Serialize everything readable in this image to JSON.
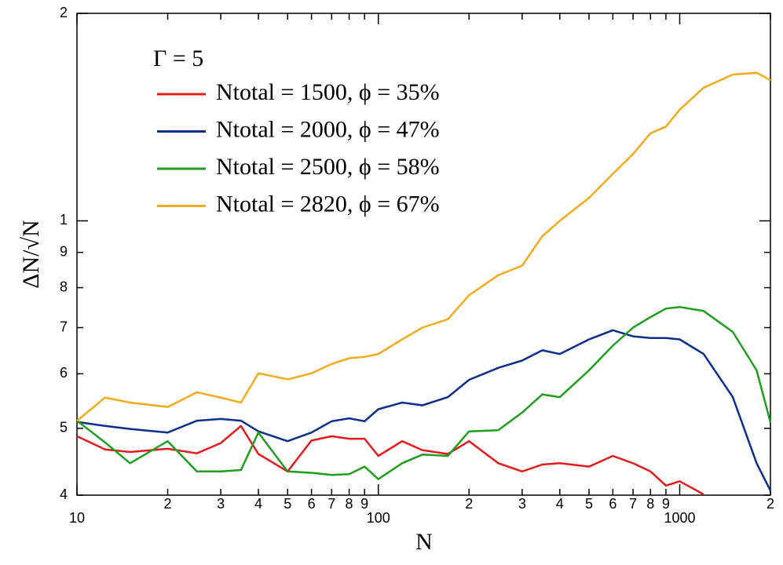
{
  "chart_data": {
    "type": "line",
    "xlabel": "N",
    "ylabel": "ΔN/√N",
    "legend_title": "Γ = 5",
    "xscale": "log",
    "yscale": "log",
    "xlim": [
      10,
      2000
    ],
    "ylim": [
      0.4,
      2
    ],
    "xticks": [
      10,
      {
        "value": 20,
        "label": "2"
      },
      {
        "value": 30,
        "label": "3"
      },
      {
        "value": 40,
        "label": "4"
      },
      {
        "value": 50,
        "label": "5"
      },
      {
        "value": 60,
        "label": "6"
      },
      {
        "value": 70,
        "label": "7"
      },
      {
        "value": 80,
        "label": "8"
      },
      {
        "value": 90,
        "label": "9"
      },
      100,
      {
        "value": 200,
        "label": "2"
      },
      {
        "value": 300,
        "label": "3"
      },
      {
        "value": 400,
        "label": "4"
      },
      {
        "value": 500,
        "label": "5"
      },
      {
        "value": 600,
        "label": "6"
      },
      {
        "value": 700,
        "label": "7"
      },
      {
        "value": 800,
        "label": "8"
      },
      {
        "value": 900,
        "label": "9"
      },
      1000,
      {
        "value": 2000,
        "label": "2"
      }
    ],
    "yticks": [
      {
        "value": 0.4,
        "label": "4"
      },
      {
        "value": 0.5,
        "label": "5"
      },
      {
        "value": 0.6,
        "label": "6"
      },
      {
        "value": 0.7,
        "label": "7"
      },
      {
        "value": 0.8,
        "label": "8"
      },
      {
        "value": 0.9,
        "label": "9"
      },
      1,
      2
    ],
    "x": [
      10,
      12.4,
      15,
      20,
      25,
      30,
      35,
      40,
      50,
      60,
      70,
      80,
      90,
      100,
      120,
      140,
      170,
      200,
      250,
      300,
      350,
      400,
      500,
      600,
      700,
      800,
      900,
      1000,
      1200,
      1500,
      1800,
      2000
    ],
    "series": [
      {
        "name": "Ntotal = 1500, ϕ = 35%",
        "color": "#e41a1c",
        "values": [
          0.487,
          0.466,
          0.462,
          0.467,
          0.46,
          0.476,
          0.504,
          0.459,
          0.433,
          0.48,
          0.487,
          0.483,
          0.483,
          0.456,
          0.479,
          0.465,
          0.459,
          0.479,
          0.445,
          0.433,
          0.443,
          0.445,
          0.44,
          0.456,
          0.445,
          0.433,
          0.413,
          0.419,
          0.401,
          null,
          null,
          null
        ]
      },
      {
        "name": "Ntotal = 2000, ϕ = 47%",
        "color": "#0b2f8f",
        "values": [
          0.511,
          0.504,
          0.499,
          0.493,
          0.513,
          0.516,
          0.513,
          0.495,
          0.479,
          0.493,
          0.512,
          0.517,
          0.512,
          0.533,
          0.545,
          0.54,
          0.555,
          0.588,
          0.612,
          0.627,
          0.649,
          0.641,
          0.673,
          0.694,
          0.68,
          0.676,
          0.676,
          0.673,
          0.641,
          0.555,
          0.445,
          0.406
        ]
      },
      {
        "name": "Ntotal = 2500, ϕ = 58%",
        "color": "#1f9e1f",
        "values": [
          0.513,
          0.477,
          0.445,
          0.479,
          0.433,
          0.433,
          0.435,
          0.493,
          0.433,
          0.431,
          0.428,
          0.429,
          0.44,
          0.422,
          0.445,
          0.458,
          0.456,
          0.495,
          0.497,
          0.527,
          0.56,
          0.555,
          0.607,
          0.659,
          0.7,
          0.725,
          0.746,
          0.75,
          0.74,
          0.69,
          0.607,
          0.51
        ]
      },
      {
        "name": "Ntotal = 2820, ϕ = 67%",
        "color": "#f5aa1c",
        "values": [
          0.513,
          0.554,
          0.545,
          0.537,
          0.564,
          0.554,
          0.545,
          0.601,
          0.589,
          0.601,
          0.62,
          0.632,
          0.635,
          0.641,
          0.673,
          0.7,
          0.72,
          0.78,
          0.834,
          0.861,
          0.95,
          1.0,
          1.08,
          1.17,
          1.25,
          1.34,
          1.37,
          1.45,
          1.56,
          1.63,
          1.64,
          1.6
        ]
      }
    ]
  }
}
